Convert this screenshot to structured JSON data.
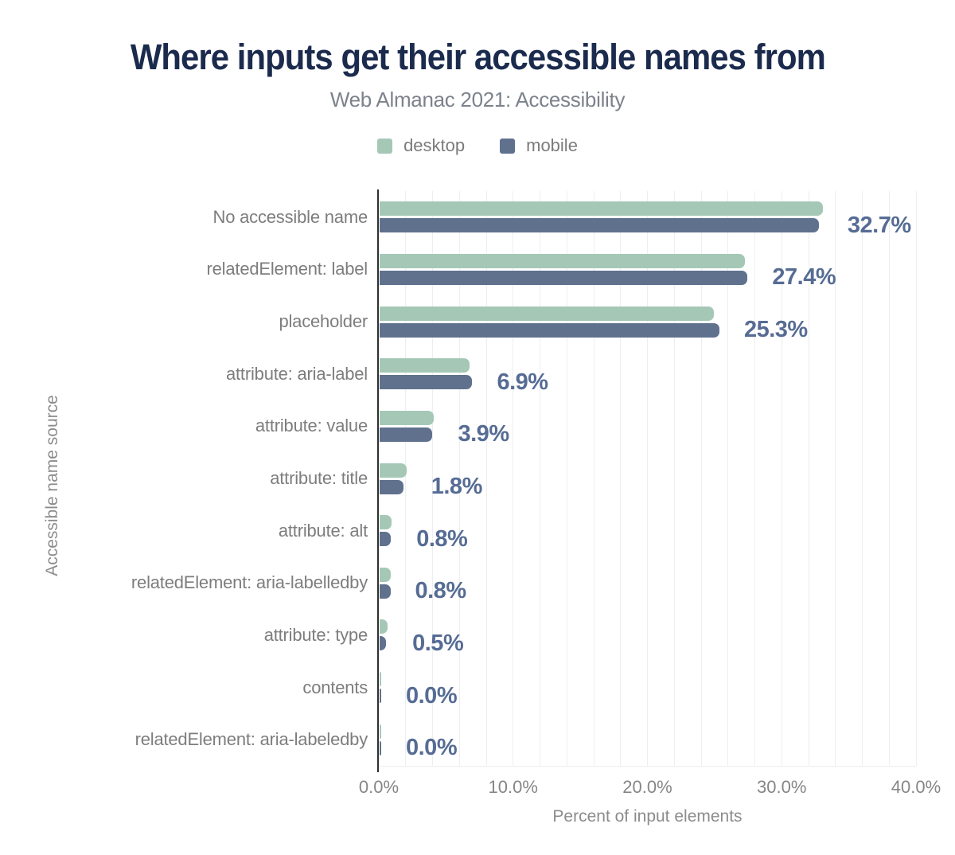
{
  "chart_data": {
    "type": "bar",
    "orientation": "horizontal",
    "title": "Where inputs get their accessible names from",
    "subtitle": "Web Almanac 2021: Accessibility",
    "xlabel": "Percent of input elements",
    "ylabel": "Accessible name source",
    "xlim": [
      0,
      40
    ],
    "xticks": {
      "values": [
        0,
        10,
        20,
        30,
        40
      ],
      "labels": [
        "0.0%",
        "10.0%",
        "20.0%",
        "30.0%",
        "40.0%"
      ]
    },
    "grid": {
      "on": true,
      "minor_step_percent": 2,
      "color": "#eceef1"
    },
    "legend_position": "top",
    "categories": [
      "No accessible name",
      "relatedElement: label",
      "placeholder",
      "attribute: aria-label",
      "attribute: value",
      "attribute: title",
      "attribute: alt",
      "relatedElement: aria-labelledby",
      "attribute: type",
      "contents",
      "relatedElement: aria-labeledby"
    ],
    "series": [
      {
        "name": "desktop",
        "color": "#a5c8b6",
        "values": [
          33.0,
          27.2,
          24.9,
          6.7,
          4.0,
          2.0,
          0.9,
          0.8,
          0.6,
          0.0,
          0.0
        ]
      },
      {
        "name": "mobile",
        "color": "#60718e",
        "values": [
          32.7,
          27.4,
          25.3,
          6.9,
          3.9,
          1.8,
          0.8,
          0.8,
          0.5,
          0.0,
          0.0
        ]
      }
    ],
    "value_labels": [
      "32.7%",
      "27.4%",
      "25.3%",
      "6.9%",
      "3.9%",
      "1.8%",
      "0.8%",
      "0.8%",
      "0.5%",
      "0.0%",
      "0.0%"
    ],
    "colors": {
      "title": "#1b2b4d",
      "subtitle": "#7c828c",
      "axis_line": "#2f2f2f",
      "category_label": "#7d7d7d",
      "tick_label": "#868686",
      "value_label": "#566c94",
      "background": "#ffffff"
    }
  }
}
